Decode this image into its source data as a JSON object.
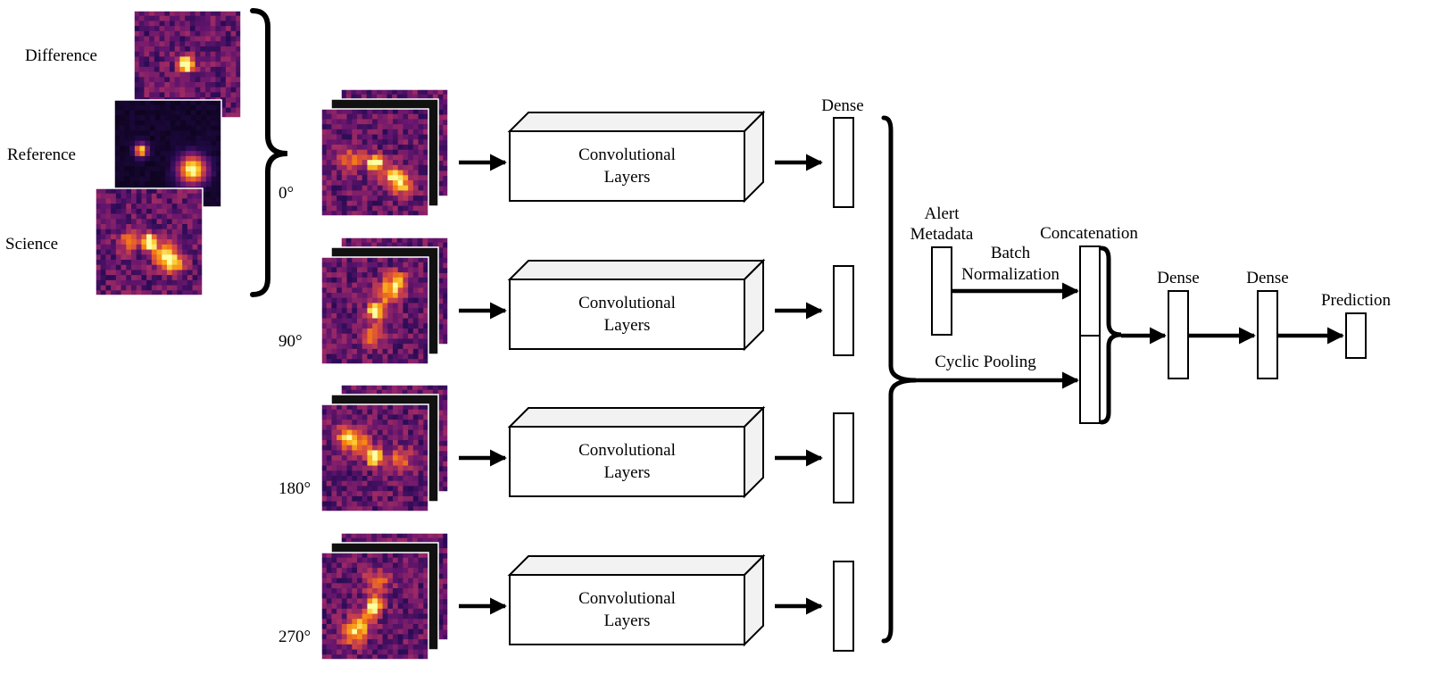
{
  "inputs": {
    "labels": [
      "Difference",
      "Reference",
      "Science"
    ]
  },
  "rotations": [
    "0°",
    "90°",
    "180°",
    "270°"
  ],
  "conv_block": {
    "line1": "Convolutional",
    "line2": "Layers"
  },
  "labels": {
    "dense_top": "Dense",
    "alert_line1": "Alert",
    "alert_line2": "Metadata",
    "batch_line1": "Batch",
    "batch_line2": "Normalization",
    "concatenation": "Concatenation",
    "cyclic_pooling": "Cyclic Pooling",
    "dense_1": "Dense",
    "dense_2": "Dense",
    "prediction": "Prediction"
  },
  "colors": {
    "stroke": "#000000",
    "box_fill": "#ffffff",
    "box_side": "#f2f2f2",
    "colormap": "inferno"
  }
}
